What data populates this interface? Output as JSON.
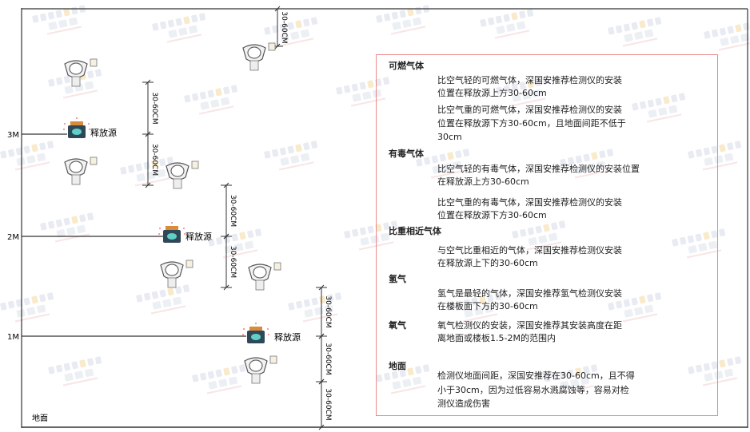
{
  "diagram": {
    "levels": [
      "3M",
      "2M",
      "1M"
    ],
    "ground_label": "地面",
    "source_label": "释放源",
    "dimension_label": "30-60CM",
    "watermark": "SINGOAN 深国安"
  },
  "panel": {
    "sections": [
      {
        "title": "可燃气体",
        "paragraphs": [
          [
            "比空气轻的可燃气体，深国安推荐检测仪的安装",
            "位置在释放源上方30-60cm"
          ],
          [
            "比空气重的可燃气体，深国安推荐检测仪的安装",
            "位置在释放源下方30-60cm，且地面间距不低于",
            "30cm"
          ]
        ]
      },
      {
        "title": "有毒气体",
        "paragraphs": [
          [
            "比空气轻的有毒气体，深国安推荐检测仪的安装位置",
            "在释放源上方30-60cm"
          ],
          [
            "比空气重的有毒气体，深国安推荐检测仪的安装",
            "位置在释放源下方30-60cm"
          ]
        ]
      },
      {
        "title": "比重相近气体",
        "paragraphs": [
          [
            "与空气比重相近的气体，深国安推荐检测仪安装",
            "在释放源上下的30-60cm"
          ]
        ]
      },
      {
        "title": "氢气",
        "paragraphs": [
          [
            "氢气是最轻的气体，深国安推荐氢气检测仪安装",
            "在楼板面下方的30-60cm"
          ]
        ]
      },
      {
        "title": "氧气",
        "paragraphs": [
          [
            "氧气检测仪的安装，深国安推荐其安装高度在距",
            "离地面或楼板1.5-2M的范围内"
          ]
        ]
      },
      {
        "title": "地面",
        "paragraphs": [
          [
            "检测仪地面间距，深国安推荐在30-60cm，且不得",
            "小于30cm，因为过低容易水溅腐蚀等，容易对检",
            "测仪造成伤害"
          ]
        ]
      }
    ]
  },
  "colors": {
    "frame": "#333333",
    "panel_border": "#e88a8a",
    "source_body": "#2f4858",
    "source_cap": "#d98a3a",
    "source_face": "#5fd0c8"
  }
}
